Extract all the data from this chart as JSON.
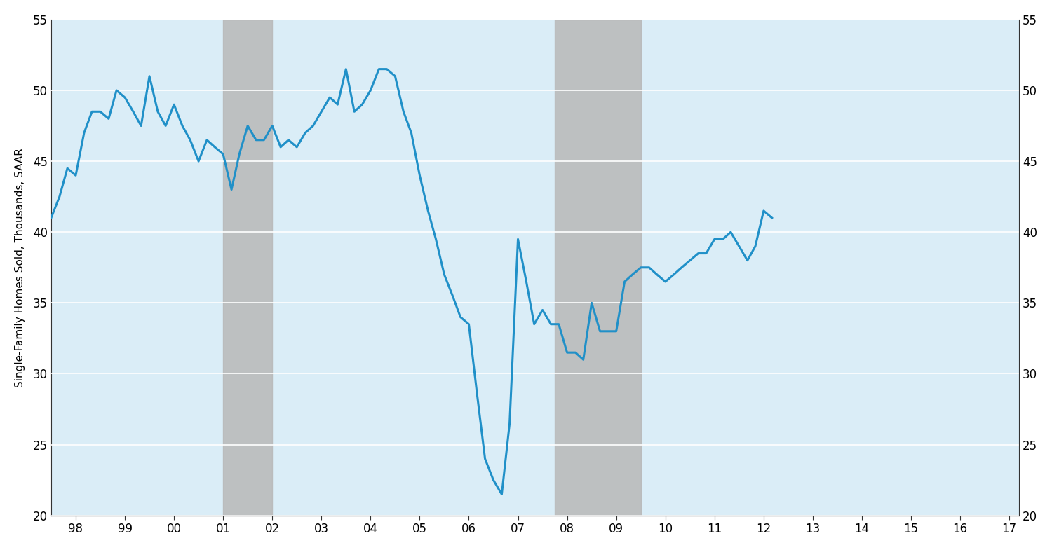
{
  "ylabel": "Single-Family Homes Sold, Thousands, SAAR",
  "ylim": [
    20,
    55
  ],
  "yticks": [
    20,
    25,
    30,
    35,
    40,
    45,
    50,
    55
  ],
  "background_color": "#daedf7",
  "line_color": "#2090c8",
  "line_width": 2.2,
  "recession_color": "#b8b8b8",
  "recession_alpha": 0.85,
  "recessions": [
    {
      "start": 2001.0,
      "end": 2002.0
    },
    {
      "start": 2007.75,
      "end": 2009.5
    }
  ],
  "xlim": [
    1997.5,
    2017.2
  ],
  "x_tick_labels": [
    "98",
    "99",
    "00",
    "01",
    "02",
    "03",
    "04",
    "05",
    "06",
    "07",
    "08",
    "09",
    "10",
    "11",
    "12",
    "13",
    "14",
    "15",
    "16",
    "17"
  ],
  "x_tick_positions": [
    1998,
    1999,
    2000,
    2001,
    2002,
    2003,
    2004,
    2005,
    2006,
    2007,
    2008,
    2009,
    2010,
    2011,
    2012,
    2013,
    2014,
    2015,
    2016,
    2017
  ],
  "data": [
    [
      1997.5,
      41.0
    ],
    [
      1997.67,
      42.5
    ],
    [
      1997.83,
      44.5
    ],
    [
      1998.0,
      44.0
    ],
    [
      1998.17,
      47.0
    ],
    [
      1998.33,
      48.5
    ],
    [
      1998.5,
      48.5
    ],
    [
      1998.67,
      48.0
    ],
    [
      1998.83,
      50.0
    ],
    [
      1999.0,
      49.5
    ],
    [
      1999.17,
      48.5
    ],
    [
      1999.33,
      47.5
    ],
    [
      1999.5,
      51.0
    ],
    [
      1999.67,
      48.5
    ],
    [
      1999.83,
      47.5
    ],
    [
      2000.0,
      49.0
    ],
    [
      2000.17,
      47.5
    ],
    [
      2000.33,
      46.5
    ],
    [
      2000.5,
      45.0
    ],
    [
      2000.67,
      46.5
    ],
    [
      2000.83,
      46.0
    ],
    [
      2001.0,
      45.5
    ],
    [
      2001.17,
      43.0
    ],
    [
      2001.33,
      45.5
    ],
    [
      2001.5,
      47.5
    ],
    [
      2001.67,
      46.5
    ],
    [
      2001.83,
      46.5
    ],
    [
      2002.0,
      47.5
    ],
    [
      2002.17,
      46.0
    ],
    [
      2002.33,
      46.5
    ],
    [
      2002.5,
      46.0
    ],
    [
      2002.67,
      47.0
    ],
    [
      2002.83,
      47.5
    ],
    [
      2003.0,
      48.5
    ],
    [
      2003.17,
      49.5
    ],
    [
      2003.33,
      49.0
    ],
    [
      2003.5,
      51.5
    ],
    [
      2003.67,
      48.5
    ],
    [
      2003.83,
      49.0
    ],
    [
      2004.0,
      50.0
    ],
    [
      2004.17,
      51.5
    ],
    [
      2004.33,
      51.5
    ],
    [
      2004.5,
      51.0
    ],
    [
      2004.67,
      48.5
    ],
    [
      2004.83,
      47.0
    ],
    [
      2005.0,
      44.0
    ],
    [
      2005.17,
      41.5
    ],
    [
      2005.33,
      39.5
    ],
    [
      2005.5,
      37.0
    ],
    [
      2005.67,
      35.5
    ],
    [
      2005.83,
      34.0
    ],
    [
      2006.0,
      33.5
    ],
    [
      2006.17,
      28.5
    ],
    [
      2006.33,
      24.0
    ],
    [
      2006.5,
      22.5
    ],
    [
      2006.67,
      21.5
    ],
    [
      2006.83,
      26.5
    ],
    [
      2007.0,
      39.5
    ],
    [
      2007.17,
      36.5
    ],
    [
      2007.33,
      33.5
    ],
    [
      2007.5,
      34.5
    ],
    [
      2007.67,
      33.5
    ],
    [
      2007.83,
      33.5
    ],
    [
      2008.0,
      31.5
    ],
    [
      2008.17,
      31.5
    ],
    [
      2008.33,
      31.0
    ],
    [
      2008.5,
      35.0
    ],
    [
      2008.67,
      33.0
    ],
    [
      2008.83,
      33.0
    ],
    [
      2009.0,
      33.0
    ],
    [
      2009.17,
      36.5
    ],
    [
      2009.33,
      37.0
    ],
    [
      2009.5,
      37.5
    ],
    [
      2009.67,
      37.5
    ],
    [
      2009.83,
      37.0
    ],
    [
      2010.0,
      36.5
    ],
    [
      2010.17,
      37.0
    ],
    [
      2010.33,
      37.5
    ],
    [
      2010.5,
      38.0
    ],
    [
      2010.67,
      38.5
    ],
    [
      2010.83,
      38.5
    ],
    [
      2011.0,
      39.5
    ],
    [
      2011.17,
      39.5
    ],
    [
      2011.33,
      40.0
    ],
    [
      2011.5,
      39.0
    ],
    [
      2011.67,
      38.0
    ],
    [
      2011.83,
      39.0
    ],
    [
      2012.0,
      41.5
    ],
    [
      2012.17,
      41.0
    ]
  ]
}
